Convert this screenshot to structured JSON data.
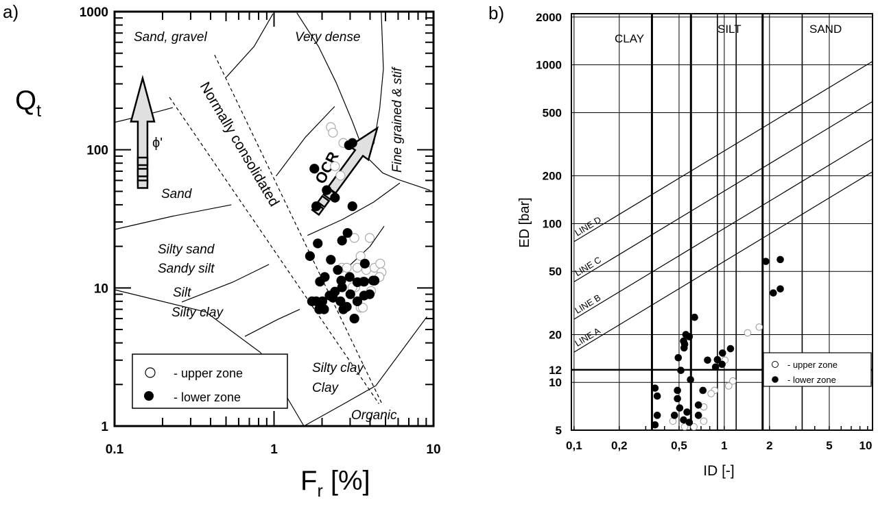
{
  "panel_labels": [
    "a)",
    "b)"
  ],
  "chart_data": [
    {
      "type": "scatter",
      "xscale": "log",
      "yscale": "log",
      "xlim": [
        0.1,
        10
      ],
      "ylim": [
        1,
        1000
      ],
      "xlabel": {
        "symbol": "F",
        "subscript": "r",
        "unit": " [%]"
      },
      "ylabel": {
        "symbol": "Q",
        "subscript": "t"
      },
      "xticks": [
        {
          "v": 0.1,
          "label": "0.1"
        },
        {
          "v": 1,
          "label": "1"
        },
        {
          "v": 10,
          "label": "10"
        }
      ],
      "yticks": [
        {
          "v": 1,
          "label": "1"
        },
        {
          "v": 10,
          "label": "10"
        },
        {
          "v": 100,
          "label": "100"
        },
        {
          "v": 1000,
          "label": "1000"
        }
      ],
      "zone_labels": [
        "Sand, gravel",
        "Very dense",
        "Fine grained & stif",
        "Normally consolidated",
        "OCR",
        "Sand",
        "Silty sand",
        "Sandy silt",
        "Silt",
        "Silty clay",
        "Silty clay",
        "Clay",
        "Organic",
        "ϕ'"
      ],
      "boundaries": [
        [
          [
            0.1,
            158
          ],
          [
            0.16,
            180
          ],
          [
            0.232,
            202
          ]
        ],
        [
          [
            0.5,
            334
          ],
          [
            0.75,
            560
          ],
          [
            0.985,
            966
          ]
        ],
        [
          [
            1.39,
            980
          ],
          [
            1.9,
            560
          ],
          [
            2.45,
            307
          ],
          [
            3.1,
            160
          ],
          [
            3.74,
            90.6
          ],
          [
            4.8,
            68
          ],
          [
            5.97,
            61
          ],
          [
            9.5,
            51
          ]
        ],
        [
          [
            4.7,
            1000
          ],
          [
            4.85,
            385
          ],
          [
            4.6,
            200
          ],
          [
            4.22,
            110
          ]
        ],
        [
          [
            1.03,
            64.5
          ],
          [
            1.57,
            123
          ],
          [
            2.4,
            206
          ]
        ],
        [
          [
            0.1,
            26.5
          ],
          [
            0.23,
            33
          ],
          [
            0.54,
            40
          ]
        ],
        [
          [
            1.62,
            24
          ],
          [
            2.7,
            31.4
          ],
          [
            4.2,
            41.7
          ],
          [
            6.15,
            57.5
          ]
        ],
        [
          [
            0.1,
            9.7
          ],
          [
            0.373,
            6.7
          ],
          [
            0.824,
            3.4
          ],
          [
            1.54,
            1
          ]
        ],
        [
          [
            0.264,
            7.9
          ],
          [
            0.55,
            11
          ],
          [
            0.93,
            14.8
          ]
        ],
        [
          [
            0.657,
            4.46
          ],
          [
            1.05,
            5.9
          ],
          [
            1.45,
            7.0
          ]
        ],
        [
          [
            2.99,
            14.6
          ],
          [
            4.0,
            20
          ],
          [
            4.9,
            28
          ]
        ],
        [
          [
            1.54,
            1
          ],
          [
            2.6,
            1.4
          ],
          [
            4.35,
            1.96
          ],
          [
            9.1,
            6.2
          ]
        ]
      ],
      "nc_band": [
        [
          [
            0.424,
            486
          ],
          [
            4.75,
            1.45
          ]
        ],
        [
          [
            0.221,
            240
          ],
          [
            4.55,
            1.45
          ]
        ]
      ],
      "legend": {
        "placement": "bottom-left",
        "entries": [
          "- upper zone",
          "- lower zone"
        ]
      },
      "series": [
        {
          "name": "- upper zone",
          "marker": "open-circle",
          "points": [
            [
              2.27,
              146
            ],
            [
              2.34,
              133
            ],
            [
              2.72,
              112
            ],
            [
              2.41,
              76
            ],
            [
              2.61,
              65
            ],
            [
              3.19,
              23
            ],
            [
              3.98,
              23
            ],
            [
              3.49,
              17
            ],
            [
              2.67,
              14
            ],
            [
              2.86,
              14
            ],
            [
              3.33,
              14
            ],
            [
              3.79,
              13.5
            ],
            [
              4.27,
              14
            ],
            [
              4.63,
              15
            ],
            [
              4.72,
              13
            ],
            [
              3.6,
              11.1
            ],
            [
              3.23,
              10.1
            ],
            [
              4.06,
              9.5
            ],
            [
              4.58,
              12
            ],
            [
              3.49,
              7.2
            ],
            [
              3.6,
              7.2
            ],
            [
              3.1,
              10.1
            ]
          ]
        },
        {
          "name": "- lower zone",
          "marker": "filled-circle",
          "points": [
            [
              1.79,
              73
            ],
            [
              3.1,
              112
            ],
            [
              2.95,
              108
            ],
            [
              2.14,
              51
            ],
            [
              2.41,
              45
            ],
            [
              3.1,
              39
            ],
            [
              1.84,
              39
            ],
            [
              1.88,
              21
            ],
            [
              2.67,
              22
            ],
            [
              2.89,
              25
            ],
            [
              1.68,
              17
            ],
            [
              2.27,
              16
            ],
            [
              2.51,
              13.5
            ],
            [
              1.94,
              11.1
            ],
            [
              2.08,
              12
            ],
            [
              2.64,
              11.3
            ],
            [
              2.98,
              12
            ],
            [
              3.33,
              11
            ],
            [
              3.67,
              11.1
            ],
            [
              4.18,
              11.3
            ],
            [
              2.41,
              9.4
            ],
            [
              2.67,
              10.1
            ],
            [
              3.01,
              9
            ],
            [
              3.67,
              8.8
            ],
            [
              3.98,
              9
            ],
            [
              1.73,
              8
            ],
            [
              1.84,
              8
            ],
            [
              2.01,
              8
            ],
            [
              2.23,
              8.8
            ],
            [
              2.61,
              8
            ],
            [
              2.86,
              7.3
            ],
            [
              3.33,
              8
            ],
            [
              1.92,
              7
            ],
            [
              2.06,
              7
            ],
            [
              2.72,
              7
            ],
            [
              3.19,
              6
            ],
            [
              3.71,
              15
            ],
            [
              2.34,
              8.5
            ],
            [
              4.27,
              11.3
            ]
          ]
        }
      ]
    },
    {
      "type": "scatter",
      "xscale": "log",
      "yscale": "log",
      "xlim": [
        0.096,
        9.7
      ],
      "ylim": [
        5,
        2100
      ],
      "xlabel": "ID [-]",
      "ylabel": "ED [bar]",
      "xticks": [
        {
          "v": 0.1,
          "label": "0,1"
        },
        {
          "v": 0.2,
          "label": "0,2"
        },
        {
          "v": 0.5,
          "label": "0,5"
        },
        {
          "v": 1,
          "label": "1"
        },
        {
          "v": 2,
          "label": "2"
        },
        {
          "v": 5,
          "label": "5"
        },
        {
          "v": 10,
          "label": "10"
        }
      ],
      "yticks": [
        {
          "v": 5,
          "label": "5"
        },
        {
          "v": 10,
          "label": "10"
        },
        {
          "v": 12,
          "label": "12"
        },
        {
          "v": 20,
          "label": "20"
        },
        {
          "v": 50,
          "label": "50"
        },
        {
          "v": 100,
          "label": "100"
        },
        {
          "v": 200,
          "label": "200"
        },
        {
          "v": 500,
          "label": "500"
        },
        {
          "v": 1000,
          "label": "1000"
        },
        {
          "v": 2000,
          "label": "2000"
        }
      ],
      "grid": true,
      "vertical_grid": [
        0.1,
        0.2,
        0.5,
        1,
        2,
        5,
        10
      ],
      "horizontal_grid": [
        10,
        20,
        50,
        100,
        200,
        500,
        1000,
        2000
      ],
      "thick_horizontal": [
        12
      ],
      "zone_boundaries_thick": [
        0.33,
        0.6,
        1.8
      ],
      "zone_boundaries_thin": [
        0.9,
        1.2,
        3.3
      ],
      "zone_labels": [
        "CLAY",
        "SILT",
        "SAND"
      ],
      "lines": [
        {
          "name": "LINE D",
          "points": [
            [
              0.1,
              77
            ],
            [
              10,
              1070
            ]
          ]
        },
        {
          "name": "LINE C",
          "points": [
            [
              0.1,
              43
            ],
            [
              10,
              598
            ]
          ]
        },
        {
          "name": "LINE B",
          "points": [
            [
              0.1,
              25
            ],
            [
              10,
              348
            ]
          ]
        },
        {
          "name": "LINE A",
          "points": [
            [
              0.1,
              15.5
            ],
            [
              10,
              216
            ]
          ]
        }
      ],
      "legend": {
        "placement": "right",
        "entries": [
          "- upper zone",
          "- lower zone"
        ]
      },
      "series": [
        {
          "name": "- upper zone",
          "marker": "open-circle",
          "points": [
            [
              1.43,
              20.5
            ],
            [
              1.71,
              22.3
            ],
            [
              1.01,
              13.8
            ],
            [
              1.14,
              10.2
            ],
            [
              1.07,
              9.5
            ],
            [
              0.861,
              8.9
            ],
            [
              0.817,
              8.5
            ],
            [
              0.73,
              7.0
            ],
            [
              0.73,
              5.7
            ],
            [
              0.455,
              5.7
            ],
            [
              0.545,
              5.25
            ],
            [
              0.628,
              5.25
            ]
          ]
        },
        {
          "name": "- lower zone",
          "marker": "filled-circle",
          "points": [
            [
              1.89,
              57.8
            ],
            [
              2.36,
              59.4
            ],
            [
              2.12,
              36.6
            ],
            [
              2.36,
              38.8
            ],
            [
              0.634,
              25.7
            ],
            [
              0.555,
              20
            ],
            [
              0.585,
              19.4
            ],
            [
              0.536,
              18.2
            ],
            [
              0.545,
              17.4
            ],
            [
              0.54,
              16.5
            ],
            [
              0.494,
              14.3
            ],
            [
              0.774,
              13.8
            ],
            [
              0.9,
              13.9
            ],
            [
              0.973,
              15.3
            ],
            [
              1.1,
              16.3
            ],
            [
              0.875,
              12.5
            ],
            [
              0.966,
              13
            ],
            [
              0.514,
              11.9
            ],
            [
              0.596,
              10.4
            ],
            [
              0.346,
              9.2
            ],
            [
              0.358,
              8.2
            ],
            [
              0.488,
              8.9
            ],
            [
              0.488,
              7.9
            ],
            [
              0.505,
              6.9
            ],
            [
              0.565,
              6.5
            ],
            [
              0.673,
              7.2
            ],
            [
              0.673,
              6.2
            ],
            [
              0.721,
              8.9
            ],
            [
              0.358,
              6.2
            ],
            [
              0.346,
              5.4
            ],
            [
              0.466,
              6.2
            ],
            [
              0.536,
              5.8
            ],
            [
              0.585,
              5.6
            ]
          ]
        }
      ]
    }
  ],
  "colors": {
    "ink": "#000000",
    "open_marker_fill": "#ffffff",
    "arrow_fill": "#e0e0e0"
  }
}
